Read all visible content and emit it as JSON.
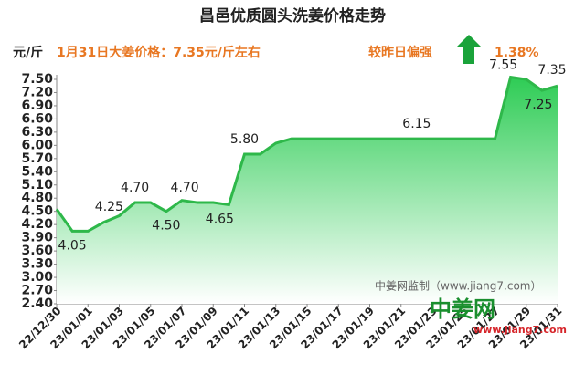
{
  "chart_data": {
    "type": "area",
    "title": "昌邑优质圆头洗姜价格走势",
    "y_axis_label": "元/斤",
    "annotations": [
      "1月31日大姜价格：7.35元/斤左右",
      "较昨日偏强",
      "1.38%"
    ],
    "watermark": "中姜网监制（www.jiang7.com）",
    "logo": {
      "name": "中姜网",
      "url": "www.jiang7.com"
    },
    "categories": [
      "22/12/30",
      null,
      "23/01/01",
      null,
      "23/01/03",
      null,
      "23/01/05",
      null,
      "23/01/07",
      null,
      "23/01/09",
      null,
      "23/01/11",
      null,
      "23/01/13",
      null,
      "23/01/15",
      null,
      "23/01/17",
      null,
      "23/01/19",
      null,
      "23/01/21",
      null,
      "23/01/23",
      null,
      "23/01/25",
      null,
      "23/01/27",
      null,
      "23/01/29",
      null,
      "23/01/31"
    ],
    "values": [
      4.55,
      4.05,
      4.05,
      4.25,
      4.4,
      4.7,
      4.7,
      4.5,
      4.75,
      4.7,
      4.7,
      4.65,
      5.8,
      5.8,
      6.05,
      6.15,
      6.15,
      6.15,
      6.15,
      6.15,
      6.15,
      6.15,
      6.15,
      6.15,
      6.15,
      6.15,
      6.15,
      6.15,
      6.15,
      7.55,
      7.5,
      7.25,
      7.35
    ],
    "value_labels": [
      null,
      "4.05",
      null,
      "4.25",
      null,
      "4.70",
      null,
      "4.50",
      null,
      "4.70",
      null,
      "4.65",
      "5.80",
      null,
      null,
      null,
      null,
      null,
      null,
      null,
      null,
      null,
      null,
      "6.15",
      null,
      null,
      null,
      null,
      null,
      "7.55",
      null,
      "7.25",
      "7.35"
    ],
    "color": "#2eb84a",
    "ylim": [
      2.4,
      7.5
    ],
    "yticks": [
      {
        "value": 2.4,
        "label": "2.40"
      },
      {
        "value": 2.7,
        "label": "2.70"
      },
      {
        "value": 3.0,
        "label": "3.00"
      },
      {
        "value": 3.3,
        "label": "3.30"
      },
      {
        "value": 3.6,
        "label": "3.60"
      },
      {
        "value": 3.9,
        "label": "3.90"
      },
      {
        "value": 4.2,
        "label": "4.20"
      },
      {
        "value": 4.5,
        "label": "4.50"
      },
      {
        "value": 4.8,
        "label": "4.80"
      },
      {
        "value": 5.1,
        "label": "5.10"
      },
      {
        "value": 5.4,
        "label": "5.40"
      },
      {
        "value": 5.7,
        "label": "5.70"
      },
      {
        "value": 6.0,
        "label": "6.00"
      },
      {
        "value": 6.3,
        "label": "6.30"
      },
      {
        "value": 6.6,
        "label": "6.60"
      },
      {
        "value": 6.9,
        "label": "6.90"
      },
      {
        "value": 7.2,
        "label": "7.20"
      },
      {
        "value": 7.5,
        "label": "7.50"
      }
    ]
  }
}
